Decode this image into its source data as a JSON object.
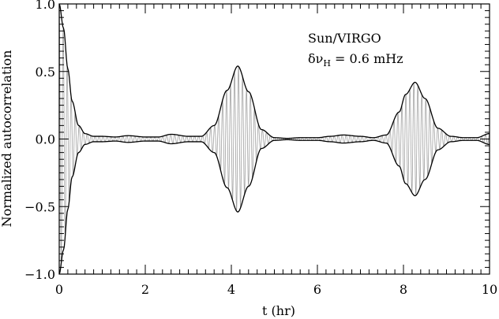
{
  "chart_data": {
    "type": "line",
    "xlabel": "t (hr)",
    "ylabel": "Normalized autocorrelation",
    "xlim": [
      0,
      10
    ],
    "ylim": [
      -1.0,
      1.0
    ],
    "x_ticks": [
      0,
      2,
      4,
      6,
      8,
      10
    ],
    "x_tick_labels": [
      "0",
      "2",
      "4",
      "6",
      "8",
      "10"
    ],
    "y_ticks": [
      -1.0,
      -0.5,
      0.0,
      0.5,
      1.0
    ],
    "y_tick_labels": [
      "−1.0",
      "−0.5",
      "0.0",
      "0.5",
      "1.0"
    ],
    "annotations": [
      {
        "text_lines": [
          "Sun/VIRGO"
        ]
      },
      {
        "text_lines": [
          "δν",
          "H",
          " = 0.6 mHz"
        ]
      }
    ],
    "series": [
      {
        "role": "oscillation",
        "color": "#a0a0a0",
        "carrier_period_hr": 0.0926
      },
      {
        "role": "envelope",
        "color": "#000000",
        "x": [
          0.0,
          0.1,
          0.2,
          0.3,
          0.45,
          0.6,
          0.8,
          1.0,
          1.3,
          1.6,
          2.0,
          2.3,
          2.6,
          3.0,
          3.3,
          3.6,
          3.9,
          4.15,
          4.4,
          4.7,
          5.0,
          5.3,
          5.6,
          6.0,
          6.3,
          6.6,
          7.0,
          7.3,
          7.6,
          7.9,
          8.05,
          8.27,
          8.5,
          8.8,
          9.1,
          9.4,
          9.7,
          10.0
        ],
        "y": [
          1.0,
          0.82,
          0.52,
          0.28,
          0.1,
          0.04,
          0.02,
          0.02,
          0.015,
          0.025,
          0.015,
          0.015,
          0.035,
          0.02,
          0.02,
          0.1,
          0.36,
          0.54,
          0.35,
          0.07,
          0.01,
          0.005,
          0.01,
          0.01,
          0.02,
          0.03,
          0.02,
          0.01,
          0.03,
          0.2,
          0.33,
          0.42,
          0.3,
          0.08,
          0.02,
          0.01,
          0.01,
          0.04
        ]
      }
    ]
  }
}
